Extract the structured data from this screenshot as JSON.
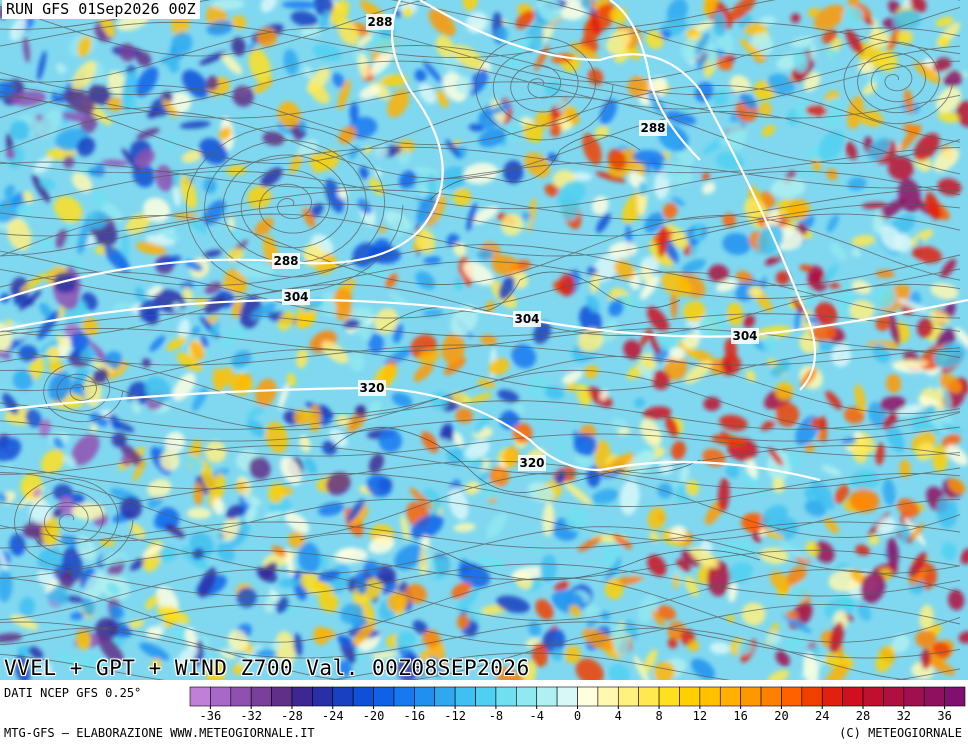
{
  "header": {
    "run": "RUN GFS 01Sep2026 00Z"
  },
  "map": {
    "contour_labels": [
      "288",
      "288",
      "288",
      "304",
      "304",
      "304",
      "320",
      "320"
    ]
  },
  "footer": {
    "title": "VVEL + GPT + WIND Z700 Val. 00Z08SEP2026",
    "source": "DATI NCEP GFS 0.25°",
    "credit": "MTG-GFS — ELABORAZIONE WWW.METEOGIORNALE.IT",
    "copyright": "(C) METEOGIORNALE"
  },
  "colorbar": {
    "colors": [
      "#c080d8",
      "#a868c8",
      "#9050b0",
      "#784098",
      "#603088",
      "#3c2890",
      "#2830a8",
      "#1840c0",
      "#1050d8",
      "#1060e8",
      "#1878f0",
      "#2090f0",
      "#30a8f0",
      "#40c0f0",
      "#50d0f0",
      "#70e0f0",
      "#90e8f0",
      "#b0f0f0",
      "#d8f8f8",
      "#ffffe0",
      "#fff8b0",
      "#fff080",
      "#ffe850",
      "#ffe020",
      "#ffd000",
      "#ffc000",
      "#ffb000",
      "#ff9800",
      "#ff8000",
      "#ff6000",
      "#f04000",
      "#e02010",
      "#d01020",
      "#c01030",
      "#b01040",
      "#a01050",
      "#901060",
      "#801070"
    ],
    "ticks": [
      -36,
      -32,
      -28,
      -24,
      -20,
      -16,
      -12,
      -8,
      -4,
      0,
      4,
      8,
      12,
      16,
      20,
      24,
      28,
      32,
      36
    ]
  }
}
